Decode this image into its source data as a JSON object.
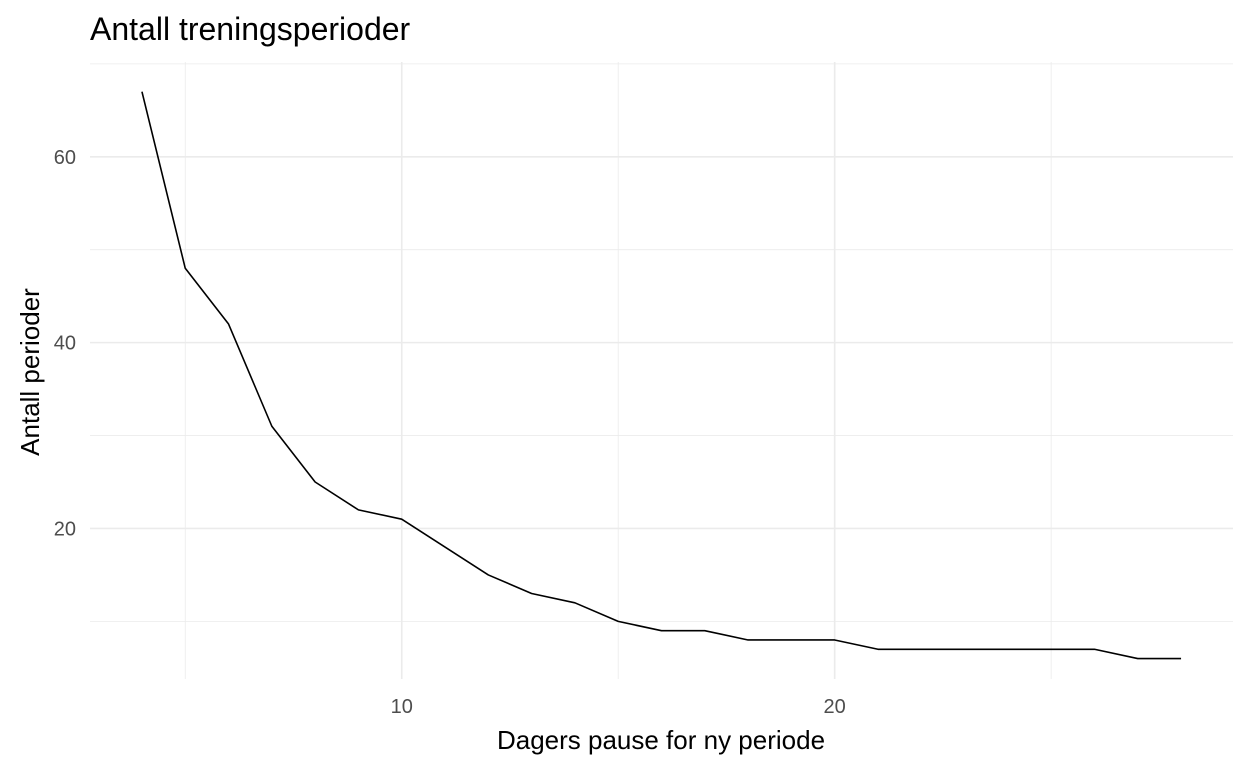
{
  "chart_data": {
    "type": "line",
    "title": "Antall treningsperioder",
    "xlabel": "Dagers pause for ny periode",
    "ylabel": "Antall perioder",
    "xlim": [
      2.8,
      29.2
    ],
    "ylim": [
      3.8,
      70.2
    ],
    "x_major_ticks": [
      10,
      20
    ],
    "x_minor_ticks": [
      5,
      15,
      25
    ],
    "y_major_ticks": [
      20,
      40,
      60
    ],
    "y_minor_ticks": [
      10,
      30,
      50,
      70
    ],
    "grid": true,
    "legend": "none",
    "line_color": "#000000",
    "grid_color": "#ebebeb",
    "series": [
      {
        "x": [
          4,
          5,
          6,
          7,
          8,
          9,
          10,
          11,
          12,
          13,
          14,
          15,
          16,
          17,
          18,
          19,
          20,
          21,
          22,
          23,
          24,
          25,
          26,
          27,
          28
        ],
        "values": [
          67,
          48,
          42,
          31,
          25,
          22,
          21,
          18,
          15,
          13,
          12,
          10,
          9,
          9,
          8,
          8,
          8,
          7,
          7,
          7,
          7,
          7,
          7,
          6,
          6
        ]
      }
    ]
  }
}
